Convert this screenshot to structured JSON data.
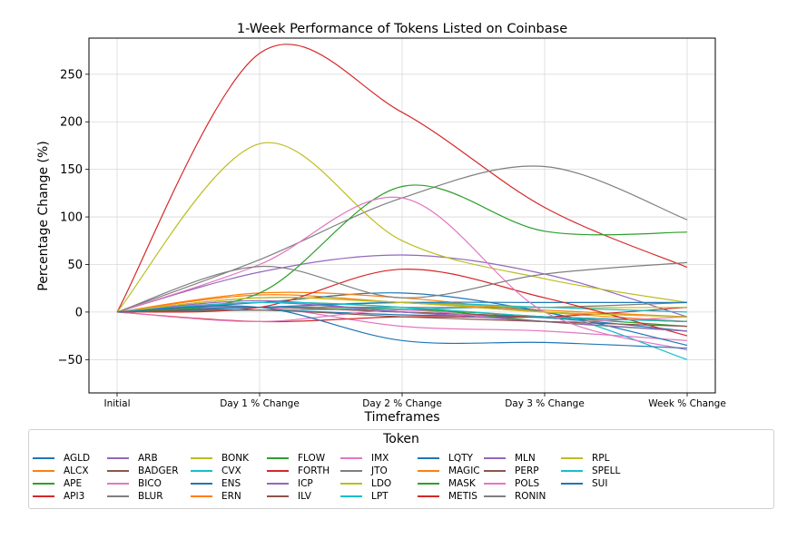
{
  "chart_data": {
    "type": "line",
    "title": "1-Week Performance of Tokens Listed on Coinbase",
    "xlabel": "Timeframes",
    "ylabel": "Percentage Change (%)",
    "categories": [
      "Initial",
      "Day 1 % Change",
      "Day 2 % Change",
      "Day 3 % Change",
      "Week % Change"
    ],
    "ylim": [
      -85,
      288
    ],
    "yticks": [
      -50,
      0,
      50,
      100,
      150,
      200,
      250
    ],
    "grid": true,
    "legend_title": "Token",
    "legend_position": "bottom",
    "series": [
      {
        "name": "AGLD",
        "color": "#1f77b4",
        "values": [
          0,
          2,
          -3,
          -6,
          -20
        ]
      },
      {
        "name": "ALCX",
        "color": "#ff7f0e",
        "values": [
          0,
          18,
          10,
          2,
          -5
        ]
      },
      {
        "name": "APE",
        "color": "#2ca02c",
        "values": [
          0,
          5,
          3,
          -5,
          -15
        ]
      },
      {
        "name": "API3",
        "color": "#d62728",
        "values": [
          0,
          272,
          210,
          110,
          47
        ]
      },
      {
        "name": "ARB",
        "color": "#9467bd",
        "values": [
          0,
          42,
          60,
          40,
          -5
        ]
      },
      {
        "name": "BADGER",
        "color": "#8c564b",
        "values": [
          0,
          5,
          0,
          -5,
          -10
        ]
      },
      {
        "name": "BICO",
        "color": "#e377c2",
        "values": [
          0,
          5,
          -15,
          -20,
          -30
        ]
      },
      {
        "name": "BLUR",
        "color": "#7f7f7f",
        "values": [
          0,
          55,
          120,
          153,
          97
        ]
      },
      {
        "name": "BONK",
        "color": "#bcbd22",
        "values": [
          0,
          177,
          75,
          35,
          10
        ]
      },
      {
        "name": "CVX",
        "color": "#17becf",
        "values": [
          0,
          2,
          3,
          0,
          -50
        ]
      },
      {
        "name": "ENS",
        "color": "#1f77b4",
        "values": [
          0,
          10,
          20,
          0,
          -35
        ]
      },
      {
        "name": "ERN",
        "color": "#ff7f0e",
        "values": [
          0,
          20,
          15,
          0,
          -10
        ]
      },
      {
        "name": "FLOW",
        "color": "#2ca02c",
        "values": [
          0,
          10,
          5,
          -10,
          -20
        ]
      },
      {
        "name": "FORTH",
        "color": "#d62728",
        "values": [
          0,
          -10,
          -5,
          -5,
          5
        ]
      },
      {
        "name": "ICP",
        "color": "#9467bd",
        "values": [
          0,
          12,
          0,
          -5,
          -10
        ]
      },
      {
        "name": "ILV",
        "color": "#8c564b",
        "values": [
          0,
          5,
          0,
          -5,
          -10
        ]
      },
      {
        "name": "IMX",
        "color": "#e377c2",
        "values": [
          0,
          -10,
          2,
          -10,
          -5
        ]
      },
      {
        "name": "JTO",
        "color": "#7f7f7f",
        "values": [
          0,
          5,
          5,
          5,
          10
        ]
      },
      {
        "name": "LDO",
        "color": "#bcbd22",
        "values": [
          0,
          15,
          10,
          5,
          5
        ]
      },
      {
        "name": "LPT",
        "color": "#17becf",
        "values": [
          0,
          5,
          10,
          5,
          0
        ]
      },
      {
        "name": "LQTY",
        "color": "#1f77b4",
        "values": [
          0,
          5,
          10,
          10,
          10
        ]
      },
      {
        "name": "MAGIC",
        "color": "#ff7f0e",
        "values": [
          0,
          15,
          10,
          0,
          -5
        ]
      },
      {
        "name": "MASK",
        "color": "#2ca02c",
        "values": [
          0,
          20,
          132,
          85,
          84
        ]
      },
      {
        "name": "METIS",
        "color": "#d62728",
        "values": [
          0,
          5,
          45,
          15,
          -25
        ]
      },
      {
        "name": "MLN",
        "color": "#9467bd",
        "values": [
          0,
          10,
          0,
          -10,
          -20
        ]
      },
      {
        "name": "PERP",
        "color": "#8c564b",
        "values": [
          0,
          2,
          -5,
          -10,
          -15
        ]
      },
      {
        "name": "POLS",
        "color": "#e377c2",
        "values": [
          0,
          50,
          120,
          0,
          -40
        ]
      },
      {
        "name": "RONIN",
        "color": "#7f7f7f",
        "values": [
          0,
          48,
          15,
          40,
          52
        ]
      },
      {
        "name": "RPL",
        "color": "#bcbd22",
        "values": [
          0,
          15,
          10,
          0,
          -5
        ]
      },
      {
        "name": "SPELL",
        "color": "#17becf",
        "values": [
          0,
          10,
          5,
          -5,
          -10
        ]
      },
      {
        "name": "SUI",
        "color": "#1f77b4",
        "values": [
          0,
          5,
          -30,
          -32,
          -38
        ]
      }
    ]
  }
}
